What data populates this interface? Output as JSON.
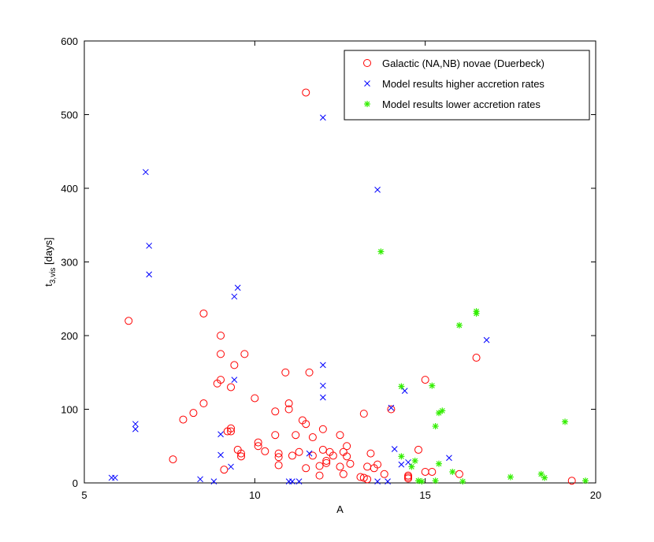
{
  "chart_data": {
    "type": "scatter",
    "xlabel": "A",
    "ylabel_main": "t",
    "ylabel_sub": "3,vis",
    "ylabel_suffix": " [days]",
    "xlim": [
      5,
      20
    ],
    "ylim": [
      0,
      600
    ],
    "xticks": [
      5,
      10,
      15,
      20
    ],
    "yticks": [
      0,
      100,
      200,
      300,
      400,
      500,
      600
    ],
    "grid": false,
    "legend_position": "top-right",
    "series": [
      {
        "name": "Galactic (NA,NB) novae (Duerbeck)",
        "marker": "circle",
        "color": "#ff0000",
        "points": [
          [
            6.3,
            220
          ],
          [
            7.6,
            32
          ],
          [
            7.9,
            86
          ],
          [
            8.2,
            95
          ],
          [
            8.5,
            230
          ],
          [
            8.5,
            108
          ],
          [
            8.9,
            135
          ],
          [
            9.0,
            200
          ],
          [
            9.0,
            175
          ],
          [
            9.0,
            140
          ],
          [
            9.1,
            18
          ],
          [
            9.2,
            70
          ],
          [
            9.3,
            74
          ],
          [
            9.3,
            70
          ],
          [
            9.3,
            130
          ],
          [
            9.4,
            160
          ],
          [
            9.5,
            45
          ],
          [
            9.6,
            40
          ],
          [
            9.6,
            36
          ],
          [
            9.7,
            175
          ],
          [
            10.0,
            115
          ],
          [
            10.1,
            55
          ],
          [
            10.1,
            50
          ],
          [
            10.3,
            43
          ],
          [
            10.6,
            97
          ],
          [
            10.6,
            65
          ],
          [
            10.7,
            40
          ],
          [
            10.7,
            35
          ],
          [
            10.7,
            24
          ],
          [
            10.9,
            150
          ],
          [
            11.0,
            108
          ],
          [
            11.0,
            100
          ],
          [
            11.1,
            37
          ],
          [
            11.2,
            65
          ],
          [
            11.3,
            42
          ],
          [
            11.4,
            85
          ],
          [
            11.5,
            80
          ],
          [
            11.5,
            530
          ],
          [
            11.5,
            20
          ],
          [
            11.6,
            150
          ],
          [
            11.7,
            37
          ],
          [
            11.7,
            62
          ],
          [
            11.9,
            23
          ],
          [
            11.9,
            10
          ],
          [
            12.0,
            73
          ],
          [
            12.0,
            45
          ],
          [
            12.1,
            30
          ],
          [
            12.1,
            27
          ],
          [
            12.2,
            42
          ],
          [
            12.3,
            37
          ],
          [
            12.5,
            65
          ],
          [
            12.5,
            22
          ],
          [
            12.6,
            42
          ],
          [
            12.6,
            12
          ],
          [
            12.7,
            36
          ],
          [
            12.7,
            50
          ],
          [
            12.8,
            26
          ],
          [
            13.1,
            8
          ],
          [
            13.2,
            94
          ],
          [
            13.2,
            7
          ],
          [
            13.3,
            22
          ],
          [
            13.3,
            5
          ],
          [
            13.4,
            40
          ],
          [
            13.5,
            20
          ],
          [
            13.6,
            25
          ],
          [
            13.8,
            12
          ],
          [
            14.0,
            100
          ],
          [
            14.5,
            10
          ],
          [
            14.5,
            8
          ],
          [
            14.5,
            6
          ],
          [
            14.8,
            45
          ],
          [
            15.0,
            140
          ],
          [
            15.0,
            15
          ],
          [
            15.2,
            15
          ],
          [
            16.0,
            12
          ],
          [
            16.5,
            170
          ],
          [
            19.3,
            3
          ]
        ]
      },
      {
        "name": "Model results  higher accretion rates",
        "marker": "x",
        "color": "#0000ff",
        "points": [
          [
            5.8,
            7
          ],
          [
            5.9,
            7
          ],
          [
            6.5,
            80
          ],
          [
            6.5,
            73
          ],
          [
            6.8,
            422
          ],
          [
            6.9,
            322
          ],
          [
            6.9,
            283
          ],
          [
            8.4,
            5
          ],
          [
            8.8,
            2
          ],
          [
            9.0,
            66
          ],
          [
            9.0,
            38
          ],
          [
            9.3,
            22
          ],
          [
            9.4,
            140
          ],
          [
            9.4,
            253
          ],
          [
            9.5,
            265
          ],
          [
            11.0,
            2
          ],
          [
            11.1,
            2
          ],
          [
            11.3,
            2
          ],
          [
            11.6,
            40
          ],
          [
            12.0,
            496
          ],
          [
            12.0,
            160
          ],
          [
            12.0,
            132
          ],
          [
            12.0,
            116
          ],
          [
            13.6,
            398
          ],
          [
            13.6,
            2
          ],
          [
            13.9,
            2
          ],
          [
            14.0,
            102
          ],
          [
            14.1,
            46
          ],
          [
            14.3,
            25
          ],
          [
            14.4,
            125
          ],
          [
            14.5,
            28
          ],
          [
            15.7,
            34
          ],
          [
            16.8,
            194
          ]
        ]
      },
      {
        "name": "Model results  lower accretion rates",
        "marker": "asterisk",
        "color": "#33ee00",
        "points": [
          [
            13.7,
            314
          ],
          [
            14.3,
            131
          ],
          [
            14.3,
            36
          ],
          [
            14.6,
            22
          ],
          [
            14.7,
            30
          ],
          [
            14.8,
            3
          ],
          [
            14.9,
            2
          ],
          [
            15.2,
            132
          ],
          [
            15.3,
            77
          ],
          [
            15.3,
            3
          ],
          [
            15.4,
            95
          ],
          [
            15.4,
            26
          ],
          [
            15.5,
            98
          ],
          [
            15.8,
            15
          ],
          [
            16.0,
            214
          ],
          [
            16.1,
            2
          ],
          [
            16.5,
            230
          ],
          [
            16.5,
            233
          ],
          [
            17.5,
            8
          ],
          [
            18.4,
            12
          ],
          [
            18.5,
            7
          ],
          [
            19.1,
            83
          ],
          [
            19.7,
            3
          ]
        ]
      }
    ]
  }
}
